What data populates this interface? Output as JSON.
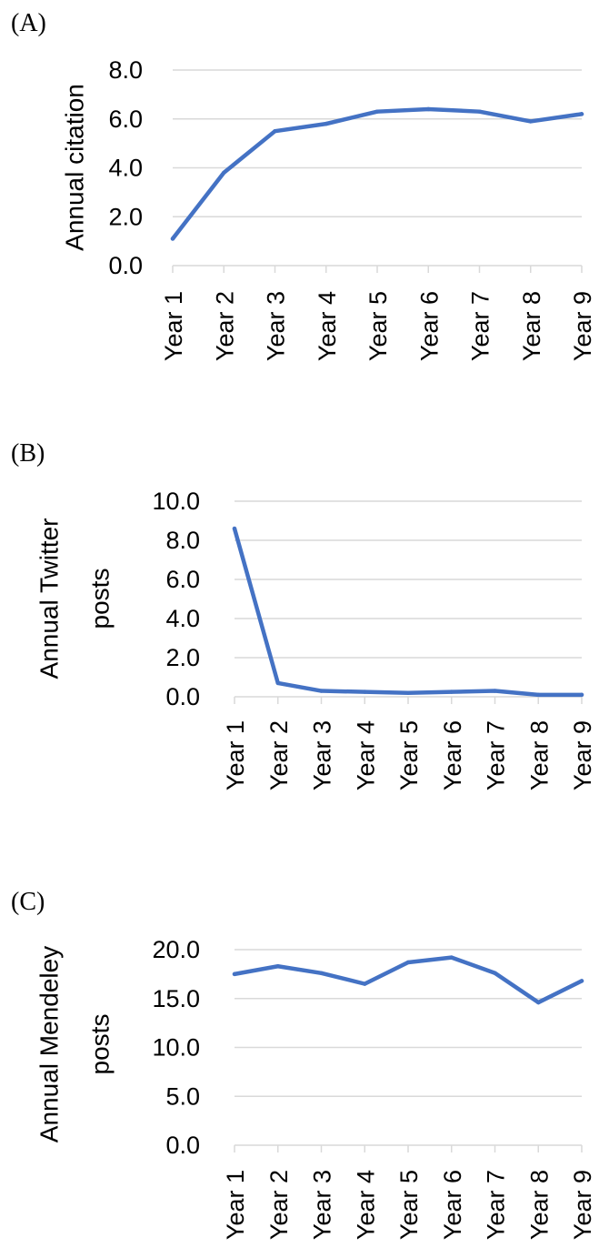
{
  "colors": {
    "series": "#4472c4"
  },
  "chart_data": [
    {
      "type": "line",
      "panel_label": "(A)",
      "ylabel": "Annual citation",
      "categories": [
        "Year 1",
        "Year 2",
        "Year 3",
        "Year 4",
        "Year 5",
        "Year 6",
        "Year 7",
        "Year 8",
        "Year 9"
      ],
      "values": [
        1.1,
        3.8,
        5.5,
        5.8,
        6.3,
        6.4,
        6.3,
        5.9,
        6.2
      ],
      "ylim": [
        0,
        8
      ],
      "yticks": [
        "0.0",
        "2.0",
        "4.0",
        "6.0",
        "8.0"
      ],
      "grid": true,
      "legend": "none"
    },
    {
      "type": "line",
      "panel_label": "(B)",
      "ylabel": [
        "Annual Twitter",
        "posts"
      ],
      "categories": [
        "Year 1",
        "Year 2",
        "Year 3",
        "Year 4",
        "Year 5",
        "Year 6",
        "Year 7",
        "Year 8",
        "Year 9"
      ],
      "values": [
        8.6,
        0.7,
        0.3,
        0.25,
        0.2,
        0.25,
        0.3,
        0.1,
        0.1
      ],
      "ylim": [
        0,
        10
      ],
      "yticks": [
        "0.0",
        "2.0",
        "4.0",
        "6.0",
        "8.0",
        "10.0"
      ],
      "grid": true,
      "legend": "none"
    },
    {
      "type": "line",
      "panel_label": "(C)",
      "ylabel": [
        "Annual Mendeley",
        "posts"
      ],
      "categories": [
        "Year 1",
        "Year 2",
        "Year 3",
        "Year 4",
        "Year 5",
        "Year 6",
        "Year 7",
        "Year 8",
        "Year 9"
      ],
      "values": [
        17.5,
        18.3,
        17.6,
        16.5,
        18.7,
        19.2,
        17.6,
        14.6,
        16.8
      ],
      "ylim": [
        0,
        20
      ],
      "yticks": [
        "0.0",
        "5.0",
        "10.0",
        "15.0",
        "20.0"
      ],
      "grid": true,
      "legend": "none"
    }
  ]
}
